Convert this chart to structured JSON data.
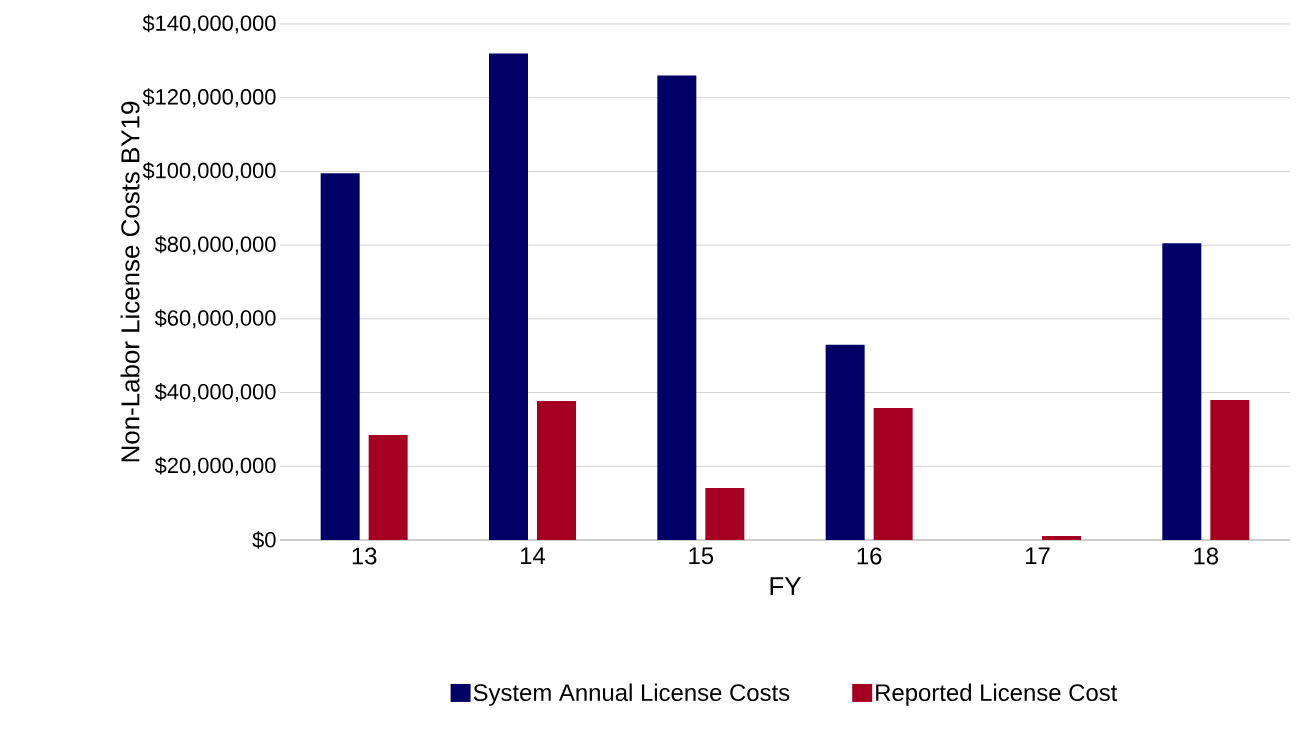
{
  "chart_data": {
    "type": "bar",
    "xlabel": "FY",
    "ylabel": "Non-Labor License Costs  BY19",
    "categories": [
      "13",
      "14",
      "15",
      "16",
      "17",
      "18"
    ],
    "series": [
      {
        "name": "System Annual License Costs",
        "color": "#000066",
        "values": [
          99500000,
          132000000,
          126000000,
          53000000,
          null,
          80500000
        ]
      },
      {
        "name": "Reported License Cost",
        "color": "#a50021",
        "values": [
          28500000,
          37700000,
          14100000,
          35800000,
          1100000,
          38000000
        ]
      }
    ],
    "ylim": [
      0,
      140000000
    ],
    "yticks": [
      {
        "value": 0,
        "label": "$0"
      },
      {
        "value": 20000000,
        "label": "$20,000,000"
      },
      {
        "value": 40000000,
        "label": "$40,000,000"
      },
      {
        "value": 60000000,
        "label": "$60,000,000"
      },
      {
        "value": 80000000,
        "label": "$80,000,000"
      },
      {
        "value": 100000000,
        "label": "$100,000,000"
      },
      {
        "value": 120000000,
        "label": "$120,000,000"
      },
      {
        "value": 140000000,
        "label": "$140,000,000"
      }
    ],
    "grid": "y",
    "legend": "bottom"
  }
}
